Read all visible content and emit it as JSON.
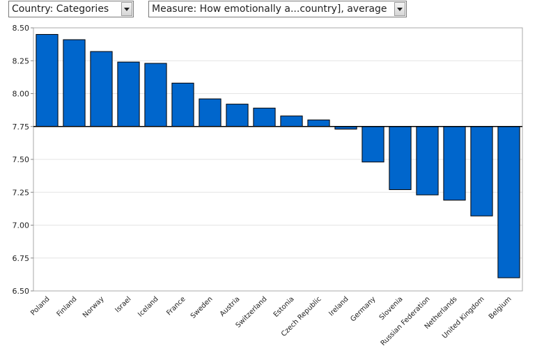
{
  "controls": {
    "country_select": "Country: Categories",
    "measure_select": "Measure: How emotionally a...country], average"
  },
  "chart_data": {
    "type": "bar",
    "baseline": 7.75,
    "ylim": [
      6.5,
      8.5
    ],
    "yticks": [
      "8.50",
      "8.25",
      "8.00",
      "7.75",
      "7.50",
      "7.25",
      "7.00",
      "6.75",
      "6.50"
    ],
    "grid": true,
    "bar_color": "#0066cc",
    "categories": [
      "Poland",
      "Finland",
      "Norway",
      "Israel",
      "Iceland",
      "France",
      "Sweden",
      "Austria",
      "Switzerland",
      "Estonia",
      "Czech Republic",
      "Ireland",
      "Germany",
      "Slovenia",
      "Russian Federation",
      "Netherlands",
      "United Kingdom",
      "Belgium"
    ],
    "values": [
      8.45,
      8.41,
      8.32,
      8.24,
      8.23,
      8.08,
      7.96,
      7.92,
      7.89,
      7.83,
      7.8,
      7.73,
      7.48,
      7.27,
      7.23,
      7.19,
      7.07,
      6.6
    ]
  }
}
